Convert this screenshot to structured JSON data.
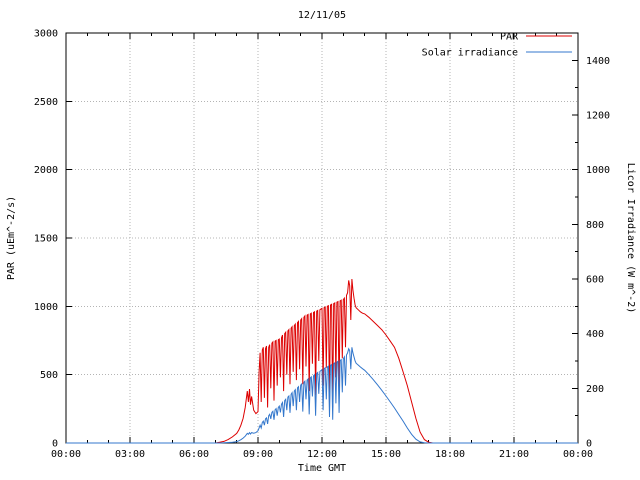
{
  "window": {
    "title": "12/11/05"
  },
  "colors": {
    "background": "#ffffff",
    "border": "#000000",
    "grid": "#b4b4b4",
    "par_line": "#dd0000",
    "solar_line": "#3377cc",
    "text": "#000000"
  },
  "legend": {
    "position": "top-right",
    "entries": [
      {
        "label": "PAR",
        "color": "#dd0000"
      },
      {
        "label": "Solar irradiance",
        "color": "#3377cc"
      }
    ]
  },
  "chart_data": {
    "type": "line",
    "title": "12/11/05",
    "xlabel": "Time GMT",
    "ylabel": "PAR (uEm^-2/s)",
    "y2label": "Licor Irradiance (W m^-2)",
    "grid": true,
    "legend_position": "top-right",
    "xlim": [
      0,
      24
    ],
    "ylim": [
      0,
      3000
    ],
    "y2lim": [
      0,
      1500
    ],
    "xticks": {
      "values": [
        0,
        3,
        6,
        9,
        12,
        15,
        18,
        21,
        24
      ],
      "labels": [
        "00:00",
        "03:00",
        "06:00",
        "09:00",
        "12:00",
        "15:00",
        "18:00",
        "21:00",
        "00:00"
      ]
    },
    "yticks": [
      0,
      500,
      1000,
      1500,
      2000,
      2500,
      3000
    ],
    "y2ticks": [
      0,
      200,
      400,
      600,
      800,
      1000,
      1200,
      1400
    ],
    "x": [
      0,
      3,
      6,
      7,
      7.2,
      7.4,
      7.6,
      7.8,
      8.0,
      8.1,
      8.2,
      8.3,
      8.4,
      8.5,
      8.55,
      8.6,
      8.65,
      8.7,
      8.8,
      8.9,
      9.0,
      9.05,
      9.1,
      9.15,
      9.2,
      9.25,
      9.3,
      9.35,
      9.4,
      9.45,
      9.5,
      9.55,
      9.6,
      9.65,
      9.7,
      9.75,
      9.8,
      9.85,
      9.9,
      9.95,
      10.0,
      10.05,
      10.1,
      10.15,
      10.2,
      10.25,
      10.3,
      10.35,
      10.4,
      10.45,
      10.5,
      10.55,
      10.6,
      10.65,
      10.7,
      10.75,
      10.8,
      10.85,
      10.9,
      10.95,
      11.0,
      11.05,
      11.1,
      11.15,
      11.2,
      11.25,
      11.3,
      11.35,
      11.4,
      11.45,
      11.5,
      11.55,
      11.6,
      11.65,
      11.7,
      11.75,
      11.8,
      11.85,
      11.9,
      11.95,
      12.0,
      12.05,
      12.1,
      12.15,
      12.2,
      12.25,
      12.3,
      12.35,
      12.4,
      12.45,
      12.5,
      12.55,
      12.6,
      12.65,
      12.7,
      12.75,
      12.8,
      12.85,
      12.9,
      12.95,
      13.0,
      13.05,
      13.1,
      13.15,
      13.2,
      13.25,
      13.3,
      13.35,
      13.4,
      13.45,
      13.5,
      13.55,
      13.6,
      13.7,
      13.8,
      13.9,
      14.0,
      14.2,
      14.4,
      14.6,
      14.8,
      15.0,
      15.2,
      15.4,
      15.6,
      15.8,
      16.0,
      16.2,
      16.4,
      16.6,
      16.8,
      17.0,
      17.2,
      18,
      21,
      24
    ],
    "series": [
      {
        "name": "PAR",
        "axis": "y",
        "color": "#dd0000",
        "values": [
          0,
          0,
          0,
          0,
          5,
          12,
          25,
          45,
          70,
          95,
          130,
          180,
          260,
          380,
          300,
          395,
          280,
          340,
          240,
          215,
          230,
          520,
          660,
          300,
          680,
          700,
          330,
          690,
          710,
          260,
          700,
          720,
          400,
          730,
          740,
          310,
          745,
          750,
          420,
          755,
          760,
          480,
          770,
          790,
          380,
          800,
          810,
          500,
          820,
          830,
          430,
          840,
          850,
          520,
          860,
          870,
          460,
          880,
          890,
          540,
          900,
          910,
          430,
          920,
          930,
          560,
          935,
          940,
          380,
          945,
          950,
          580,
          955,
          960,
          350,
          965,
          970,
          600,
          975,
          980,
          985,
          420,
          990,
          995,
          550,
          1000,
          1005,
          300,
          1010,
          1015,
          260,
          1020,
          1025,
          480,
          1030,
          1035,
          350,
          1040,
          1045,
          620,
          1050,
          1060,
          700,
          1080,
          1100,
          1190,
          1150,
          900,
          1200,
          1120,
          1060,
          1010,
          990,
          975,
          960,
          950,
          945,
          920,
          890,
          860,
          830,
          790,
          745,
          700,
          620,
          520,
          420,
          300,
          180,
          80,
          25,
          5,
          0,
          0,
          0,
          0
        ]
      },
      {
        "name": "Solar irradiance",
        "axis": "y2",
        "color": "#3377cc",
        "values": [
          0,
          0,
          0,
          0,
          0,
          1,
          2,
          3,
          5,
          8,
          12,
          18,
          25,
          35,
          32,
          38,
          33,
          38,
          36,
          38,
          45,
          55,
          65,
          55,
          75,
          80,
          65,
          88,
          92,
          70,
          100,
          105,
          88,
          112,
          116,
          85,
          122,
          126,
          100,
          130,
          135,
          112,
          142,
          148,
          95,
          155,
          160,
          120,
          168,
          172,
          110,
          178,
          184,
          135,
          190,
          195,
          120,
          202,
          206,
          150,
          212,
          216,
          115,
          222,
          226,
          160,
          230,
          234,
          105,
          238,
          242,
          170,
          246,
          250,
          100,
          254,
          258,
          180,
          262,
          265,
          268,
          120,
          272,
          275,
          160,
          278,
          281,
          95,
          284,
          287,
          85,
          290,
          293,
          145,
          296,
          299,
          110,
          302,
          305,
          185,
          308,
          315,
          210,
          322,
          330,
          345,
          338,
          270,
          350,
          330,
          315,
          300,
          292,
          285,
          278,
          272,
          266,
          250,
          232,
          213,
          193,
          172,
          150,
          128,
          104,
          80,
          55,
          32,
          14,
          4,
          1,
          0,
          0,
          0,
          0,
          0
        ]
      }
    ]
  }
}
